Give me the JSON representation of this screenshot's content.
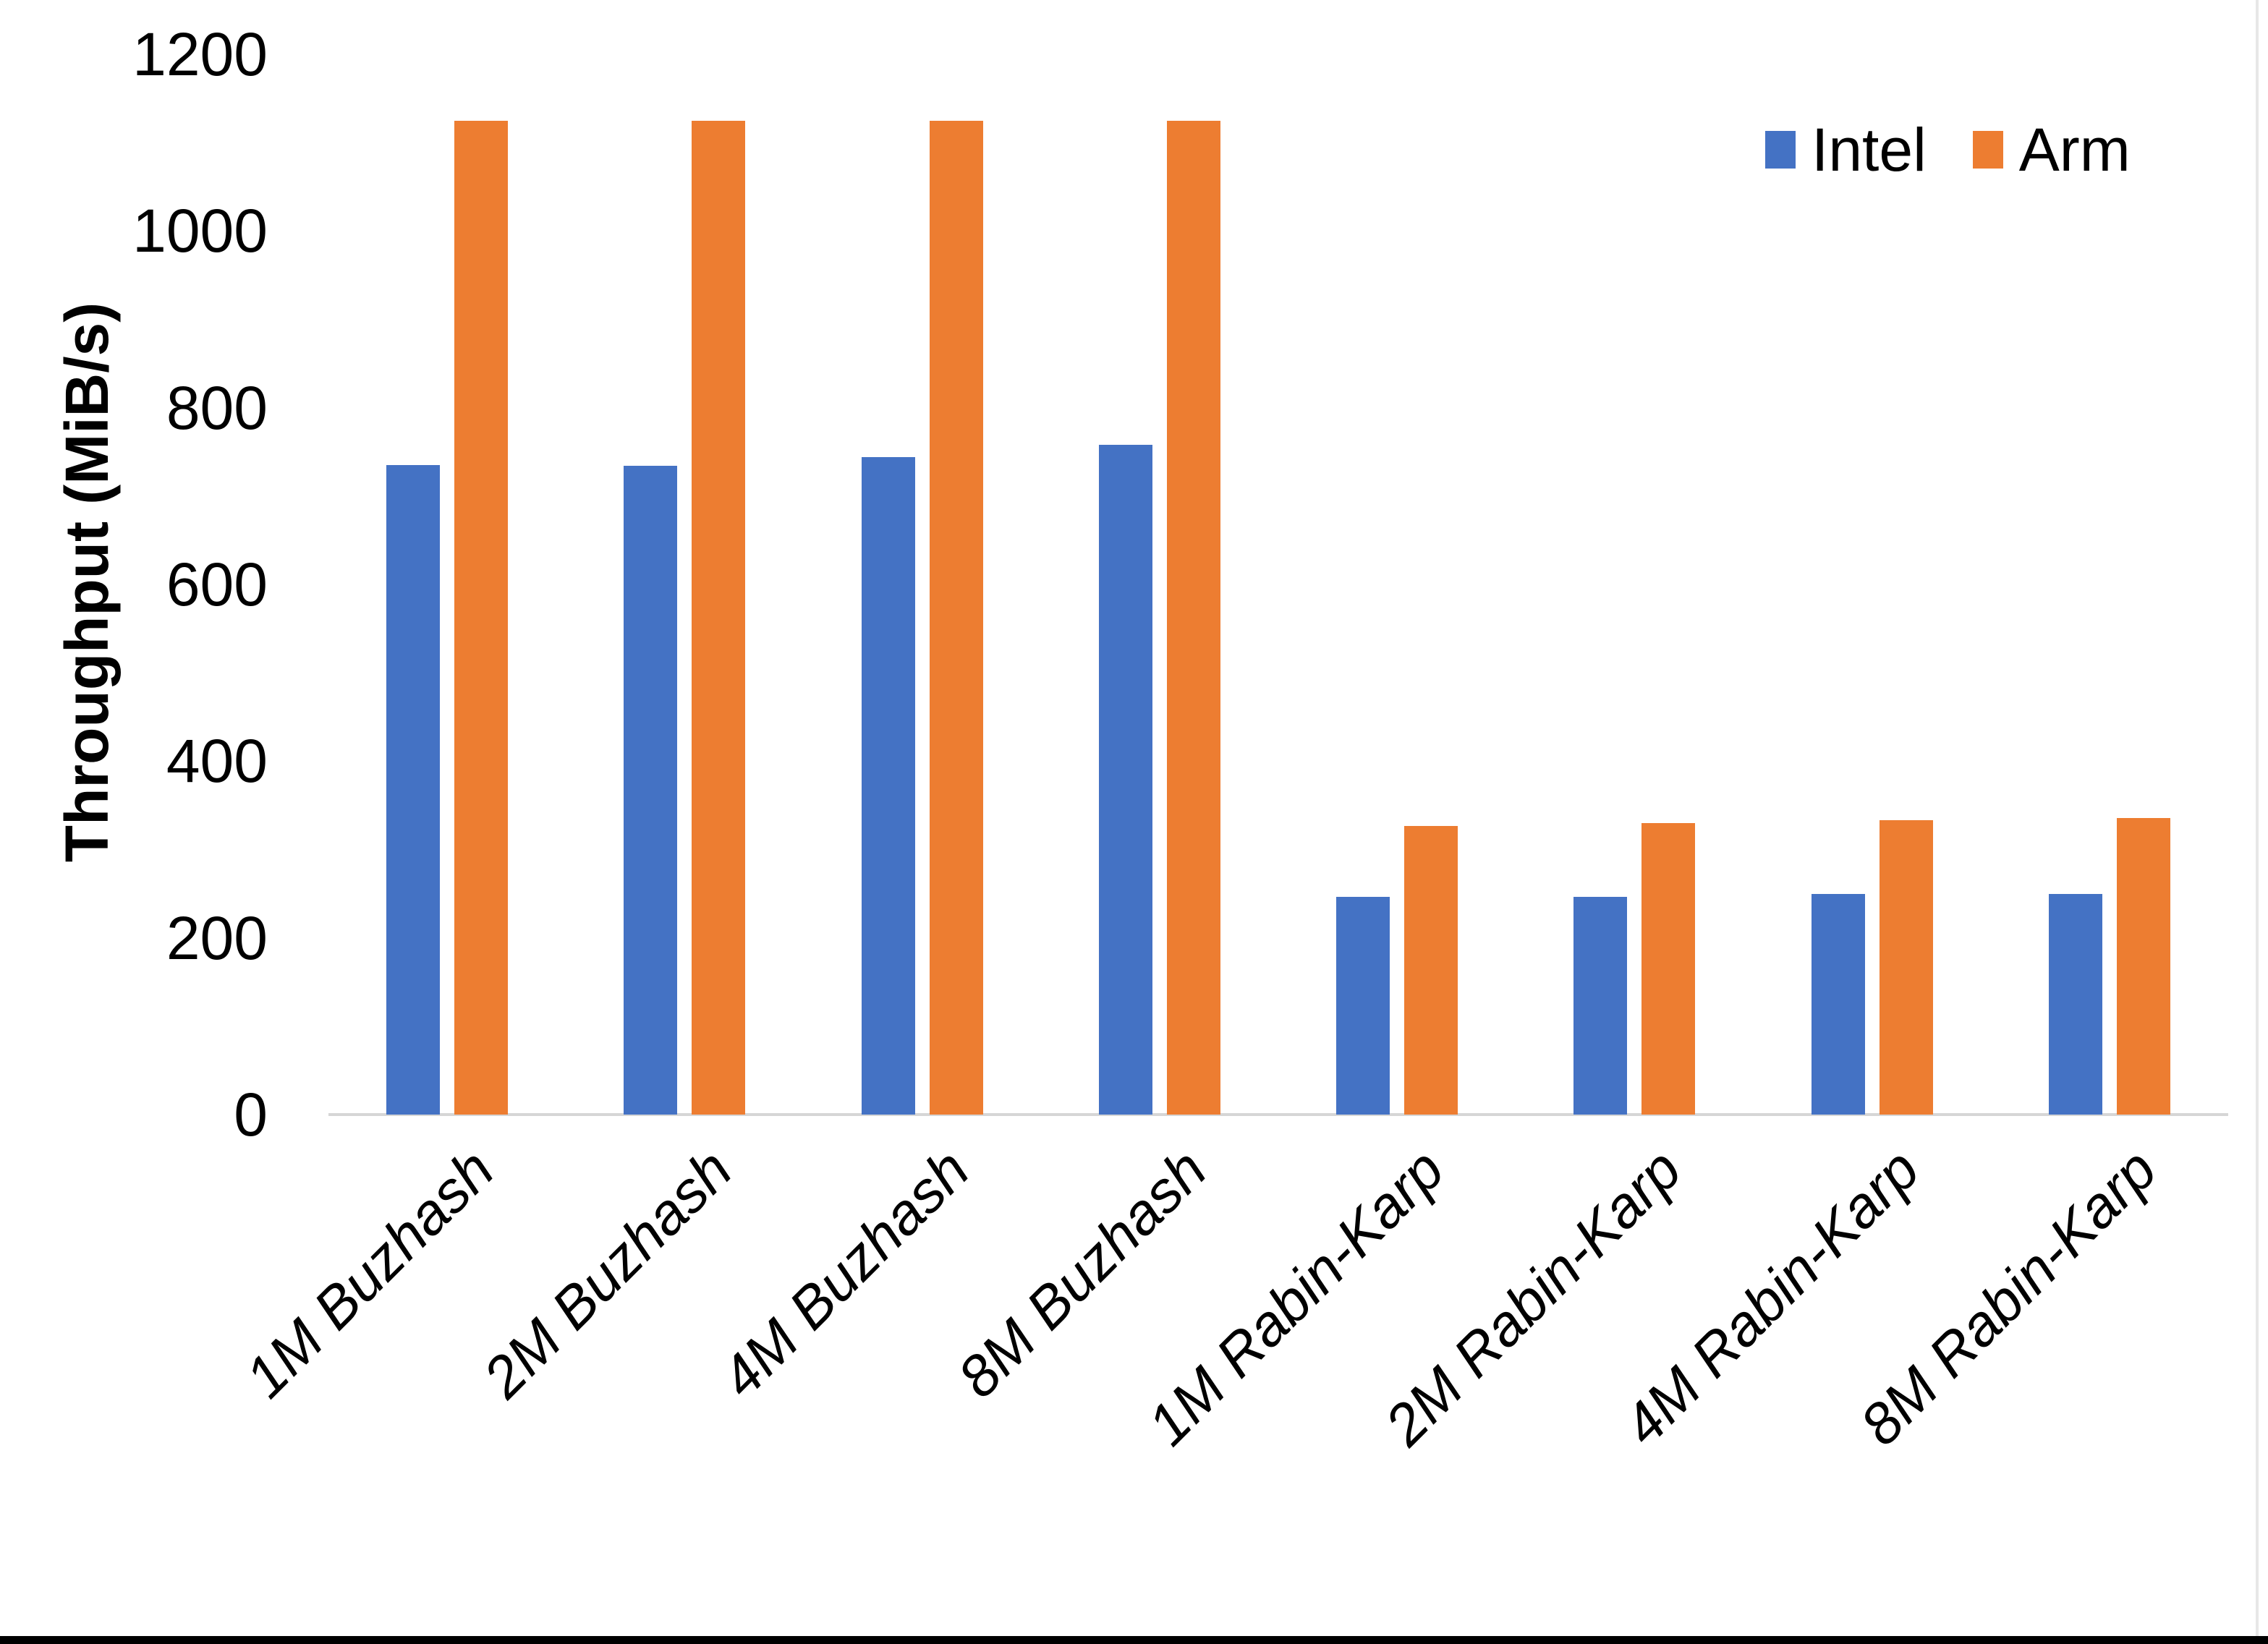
{
  "chart_data": {
    "type": "bar",
    "title": "",
    "xlabel": "",
    "ylabel": "Throughput (MiB/s)",
    "categories": [
      "1M Buzhash",
      "2M Buzhash",
      "4M Buzhash",
      "8M Buzhash",
      "1M Rabin-Karp",
      "2M Rabin-Karp",
      "4M Rabin-Karp",
      "8M Rabin-Karp"
    ],
    "series": [
      {
        "name": "Intel",
        "color": "#4472C4",
        "values": [
          735,
          734,
          744,
          758,
          246,
          246,
          250,
          250
        ]
      },
      {
        "name": "Arm",
        "color": "#ED7D31",
        "values": [
          1125,
          1125,
          1125,
          1125,
          327,
          330,
          333,
          336
        ]
      }
    ],
    "ylim": [
      0,
      1200
    ],
    "yticks": [
      0,
      200,
      400,
      600,
      800,
      1000,
      1200
    ],
    "grid": false,
    "legend_position": "top-right",
    "axis_line_color": "#d6d6d6"
  }
}
